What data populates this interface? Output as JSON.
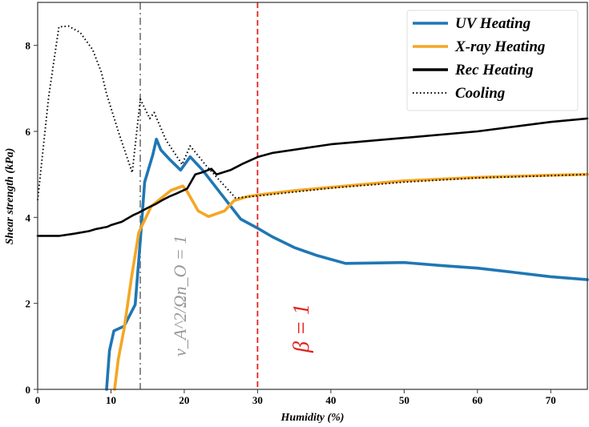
{
  "chart_data": {
    "type": "line",
    "title": "",
    "xlabel": "Humidity (%)",
    "ylabel": "Shear strength (kPa)",
    "xlim": [
      0,
      75
    ],
    "ylim": [
      0,
      9
    ],
    "xticks": [
      0,
      10,
      20,
      30,
      40,
      50,
      60,
      70
    ],
    "yticks": [
      0,
      2,
      4,
      6,
      8
    ],
    "grid": false,
    "legend_position": "top-right",
    "series": [
      {
        "name": "UV Heating",
        "color": "#1f77b4",
        "style": "solid",
        "x": [
          9.4,
          9.8,
          10.4,
          11.8,
          13.3,
          14.0,
          14.6,
          15.7,
          16.2,
          16.8,
          18.0,
          19.5,
          20.8,
          22.5,
          25.0,
          27.7,
          30.1,
          32.0,
          35.0,
          38.0,
          42.0,
          50.0,
          55.0,
          60.0,
          65.0,
          70.0,
          75.0
        ],
        "y": [
          0.0,
          0.9,
          1.36,
          1.47,
          1.97,
          3.46,
          4.82,
          5.45,
          5.82,
          5.57,
          5.35,
          5.1,
          5.41,
          5.1,
          4.55,
          3.96,
          3.74,
          3.55,
          3.3,
          3.12,
          2.93,
          2.95,
          2.88,
          2.82,
          2.72,
          2.62,
          2.55
        ]
      },
      {
        "name": "X-ray Heating",
        "color": "#f5a623",
        "style": "solid",
        "x": [
          10.5,
          11.0,
          11.8,
          12.8,
          13.8,
          15.5,
          18.2,
          19.8,
          20.4,
          21.9,
          23.3,
          25.5,
          26.8,
          28.5,
          30.0,
          35.0,
          40.0,
          50.0,
          60.0,
          70.0,
          75.0
        ],
        "y": [
          0.0,
          0.7,
          1.41,
          2.6,
          3.65,
          4.26,
          4.63,
          4.73,
          4.6,
          4.15,
          4.02,
          4.15,
          4.39,
          4.48,
          4.52,
          4.62,
          4.7,
          4.85,
          4.93,
          4.98,
          5.0
        ]
      },
      {
        "name": "Rec Heating",
        "color": "#000000",
        "style": "solid",
        "x": [
          0,
          3.0,
          5.0,
          7.0,
          8.0,
          9.5,
          10.0,
          11.5,
          12.0,
          13.0,
          13.8,
          15.0,
          16.0,
          17.0,
          17.9,
          19.0,
          20.4,
          21.5,
          22.5,
          23.7,
          24.4,
          26.3,
          28.0,
          30.1,
          32.1,
          40.0,
          50.0,
          60.0,
          70.0,
          75.0
        ],
        "y": [
          3.57,
          3.57,
          3.62,
          3.68,
          3.73,
          3.78,
          3.82,
          3.9,
          3.95,
          4.05,
          4.11,
          4.22,
          4.3,
          4.4,
          4.48,
          4.56,
          4.67,
          5.0,
          5.05,
          5.13,
          5.0,
          5.1,
          5.25,
          5.41,
          5.5,
          5.7,
          5.85,
          6.0,
          6.22,
          6.3
        ]
      },
      {
        "name": "Cooling",
        "color": "#000000",
        "style": "dotted",
        "x": [
          0,
          1.5,
          2.9,
          4.2,
          5.8,
          7.5,
          8.7,
          9.4,
          11.0,
          12.9,
          14.0,
          15.3,
          15.9,
          17.5,
          19.7,
          20.8,
          23.0,
          27.0,
          30.0,
          40.0,
          50.0,
          60.0,
          70.0,
          75.0
        ],
        "y": [
          4.4,
          6.8,
          8.43,
          8.45,
          8.3,
          7.9,
          7.37,
          6.87,
          6.0,
          5.04,
          6.75,
          6.3,
          6.44,
          5.8,
          5.23,
          5.66,
          5.2,
          4.45,
          4.5,
          4.68,
          4.82,
          4.92,
          4.97,
          5.0
        ]
      }
    ],
    "reference_lines": [
      {
        "axis": "x",
        "value": 14,
        "color": "#808080",
        "style": "dash-dot",
        "label": "v_A^2/Ωn_O = 1",
        "label_parts": {
          "v": "v",
          "sup": "2",
          "sub": "A",
          "rest": "/Ωn",
          "sub2": "O",
          "eq": " = 1"
        }
      },
      {
        "axis": "x",
        "value": 30,
        "color": "#e0201c",
        "style": "dashed",
        "label": "β = 1"
      }
    ]
  }
}
